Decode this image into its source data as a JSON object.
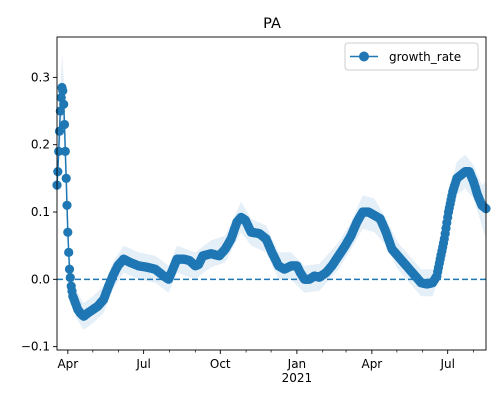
{
  "chart_data": {
    "type": "line",
    "title": "PA",
    "xlabel": "",
    "ylabel": "",
    "ylim": [
      -0.105,
      0.36
    ],
    "xlim": [
      "2020-03-19",
      "2021-08-16"
    ],
    "x_ticks": [
      {
        "date": "2020-04-01",
        "label": "Apr"
      },
      {
        "date": "2020-07-01",
        "label": "Jul"
      },
      {
        "date": "2020-10-01",
        "label": "Oct"
      },
      {
        "date": "2021-01-01",
        "label": "Jan",
        "sublabel": "2021"
      },
      {
        "date": "2021-04-01",
        "label": "Apr"
      },
      {
        "date": "2021-07-01",
        "label": "Jul"
      }
    ],
    "y_ticks": [
      -0.1,
      0.0,
      0.1,
      0.2,
      0.3
    ],
    "y_tick_labels": [
      "−0.1",
      "0.0",
      "0.1",
      "0.2",
      "0.3"
    ],
    "grid": false,
    "legend_position": "top-right",
    "reference_line": {
      "y": 0.0,
      "style": "dashed",
      "color": "#1f77b4"
    },
    "colors": {
      "series": "#1f77b4",
      "band": "#c6dbef"
    },
    "series": [
      {
        "name": "growth_rate",
        "marker": "circle",
        "points": [
          [
            "2020-03-19",
            0.14
          ],
          [
            "2020-03-20",
            0.16
          ],
          [
            "2020-03-21",
            0.19
          ],
          [
            "2020-03-22",
            0.22
          ],
          [
            "2020-03-23",
            0.25
          ],
          [
            "2020-03-24",
            0.27
          ],
          [
            "2020-03-25",
            0.285
          ],
          [
            "2020-03-26",
            0.28
          ],
          [
            "2020-03-27",
            0.26
          ],
          [
            "2020-03-28",
            0.23
          ],
          [
            "2020-03-29",
            0.19
          ],
          [
            "2020-03-30",
            0.15
          ],
          [
            "2020-03-31",
            0.11
          ],
          [
            "2020-04-01",
            0.07
          ],
          [
            "2020-04-02",
            0.04
          ],
          [
            "2020-04-03",
            0.015
          ],
          [
            "2020-04-05",
            -0.01
          ],
          [
            "2020-04-07",
            -0.025
          ],
          [
            "2020-04-10",
            -0.035
          ],
          [
            "2020-04-13",
            -0.045
          ],
          [
            "2020-04-16",
            -0.05
          ],
          [
            "2020-04-20",
            -0.055
          ],
          [
            "2020-04-25",
            -0.05
          ],
          [
            "2020-05-01",
            -0.045
          ],
          [
            "2020-05-07",
            -0.04
          ],
          [
            "2020-05-14",
            -0.03
          ],
          [
            "2020-05-20",
            -0.01
          ],
          [
            "2020-05-25",
            0.005
          ],
          [
            "2020-05-31",
            0.02
          ],
          [
            "2020-06-07",
            0.03
          ],
          [
            "2020-06-15",
            0.025
          ],
          [
            "2020-06-25",
            0.02
          ],
          [
            "2020-07-05",
            0.018
          ],
          [
            "2020-07-15",
            0.015
          ],
          [
            "2020-07-25",
            0.005
          ],
          [
            "2020-07-31",
            0.0
          ],
          [
            "2020-08-05",
            0.015
          ],
          [
            "2020-08-10",
            0.03
          ],
          [
            "2020-08-18",
            0.03
          ],
          [
            "2020-08-25",
            0.028
          ],
          [
            "2020-09-01",
            0.02
          ],
          [
            "2020-09-05",
            0.022
          ],
          [
            "2020-09-10",
            0.035
          ],
          [
            "2020-09-20",
            0.038
          ],
          [
            "2020-09-30",
            0.035
          ],
          [
            "2020-10-07",
            0.045
          ],
          [
            "2020-10-14",
            0.06
          ],
          [
            "2020-10-21",
            0.085
          ],
          [
            "2020-10-26",
            0.092
          ],
          [
            "2020-10-31",
            0.088
          ],
          [
            "2020-11-07",
            0.07
          ],
          [
            "2020-11-17",
            0.068
          ],
          [
            "2020-11-25",
            0.06
          ],
          [
            "2020-12-02",
            0.04
          ],
          [
            "2020-12-10",
            0.02
          ],
          [
            "2020-12-17",
            0.015
          ],
          [
            "2020-12-25",
            0.02
          ],
          [
            "2021-01-01",
            0.02
          ],
          [
            "2021-01-05",
            0.01
          ],
          [
            "2021-01-10",
            0.0
          ],
          [
            "2021-01-16",
            0.0
          ],
          [
            "2021-01-22",
            0.005
          ],
          [
            "2021-01-28",
            0.003
          ],
          [
            "2021-02-05",
            0.01
          ],
          [
            "2021-02-12",
            0.02
          ],
          [
            "2021-02-20",
            0.035
          ],
          [
            "2021-02-28",
            0.05
          ],
          [
            "2021-03-07",
            0.065
          ],
          [
            "2021-03-14",
            0.085
          ],
          [
            "2021-03-21",
            0.1
          ],
          [
            "2021-03-28",
            0.1
          ],
          [
            "2021-04-04",
            0.095
          ],
          [
            "2021-04-11",
            0.09
          ],
          [
            "2021-04-18",
            0.07
          ],
          [
            "2021-04-25",
            0.045
          ],
          [
            "2021-05-02",
            0.035
          ],
          [
            "2021-05-09",
            0.025
          ],
          [
            "2021-05-16",
            0.015
          ],
          [
            "2021-05-23",
            0.005
          ],
          [
            "2021-05-30",
            -0.005
          ],
          [
            "2021-06-06",
            -0.007
          ],
          [
            "2021-06-13",
            -0.005
          ],
          [
            "2021-06-18",
            0.005
          ],
          [
            "2021-06-22",
            0.03
          ],
          [
            "2021-06-27",
            0.06
          ],
          [
            "2021-07-02",
            0.1
          ],
          [
            "2021-07-07",
            0.13
          ],
          [
            "2021-07-12",
            0.15
          ],
          [
            "2021-07-17",
            0.155
          ],
          [
            "2021-07-22",
            0.16
          ],
          [
            "2021-07-27",
            0.16
          ],
          [
            "2021-08-01",
            0.145
          ],
          [
            "2021-08-06",
            0.125
          ],
          [
            "2021-08-11",
            0.11
          ],
          [
            "2021-08-16",
            0.105
          ]
        ],
        "band": [
          [
            "2020-03-19",
            0.115,
            0.165
          ],
          [
            "2020-03-22",
            0.18,
            0.26
          ],
          [
            "2020-03-25",
            0.24,
            0.335
          ],
          [
            "2020-03-28",
            0.19,
            0.28
          ],
          [
            "2020-03-31",
            0.08,
            0.15
          ],
          [
            "2020-04-03",
            0.0,
            0.035
          ],
          [
            "2020-04-10",
            -0.055,
            -0.015
          ],
          [
            "2020-04-20",
            -0.075,
            -0.035
          ],
          [
            "2020-05-01",
            -0.065,
            -0.025
          ],
          [
            "2020-05-14",
            -0.05,
            -0.01
          ],
          [
            "2020-05-25",
            -0.015,
            0.025
          ],
          [
            "2020-06-07",
            0.01,
            0.05
          ],
          [
            "2020-06-25",
            0.0,
            0.04
          ],
          [
            "2020-07-15",
            -0.005,
            0.035
          ],
          [
            "2020-07-31",
            -0.02,
            0.02
          ],
          [
            "2020-08-10",
            0.01,
            0.05
          ],
          [
            "2020-09-01",
            0.0,
            0.04
          ],
          [
            "2020-09-20",
            0.018,
            0.058
          ],
          [
            "2020-10-07",
            0.025,
            0.065
          ],
          [
            "2020-10-26",
            0.07,
            0.115
          ],
          [
            "2020-11-07",
            0.05,
            0.09
          ],
          [
            "2020-11-25",
            0.04,
            0.08
          ],
          [
            "2020-12-10",
            0.0,
            0.04
          ],
          [
            "2020-12-25",
            0.0,
            0.04
          ],
          [
            "2021-01-10",
            -0.02,
            0.02
          ],
          [
            "2021-01-28",
            -0.017,
            0.023
          ],
          [
            "2021-02-20",
            0.015,
            0.055
          ],
          [
            "2021-03-07",
            0.045,
            0.085
          ],
          [
            "2021-03-21",
            0.075,
            0.125
          ],
          [
            "2021-04-04",
            0.07,
            0.12
          ],
          [
            "2021-04-18",
            0.05,
            0.09
          ],
          [
            "2021-05-02",
            0.015,
            0.055
          ],
          [
            "2021-05-16",
            -0.005,
            0.035
          ],
          [
            "2021-05-30",
            -0.025,
            0.015
          ],
          [
            "2021-06-13",
            -0.025,
            0.015
          ],
          [
            "2021-06-22",
            0.01,
            0.05
          ],
          [
            "2021-07-02",
            0.075,
            0.125
          ],
          [
            "2021-07-12",
            0.125,
            0.175
          ],
          [
            "2021-07-22",
            0.135,
            0.185
          ],
          [
            "2021-08-01",
            0.12,
            0.17
          ],
          [
            "2021-08-11",
            0.08,
            0.14
          ],
          [
            "2021-08-16",
            0.06,
            0.145
          ]
        ]
      }
    ]
  }
}
